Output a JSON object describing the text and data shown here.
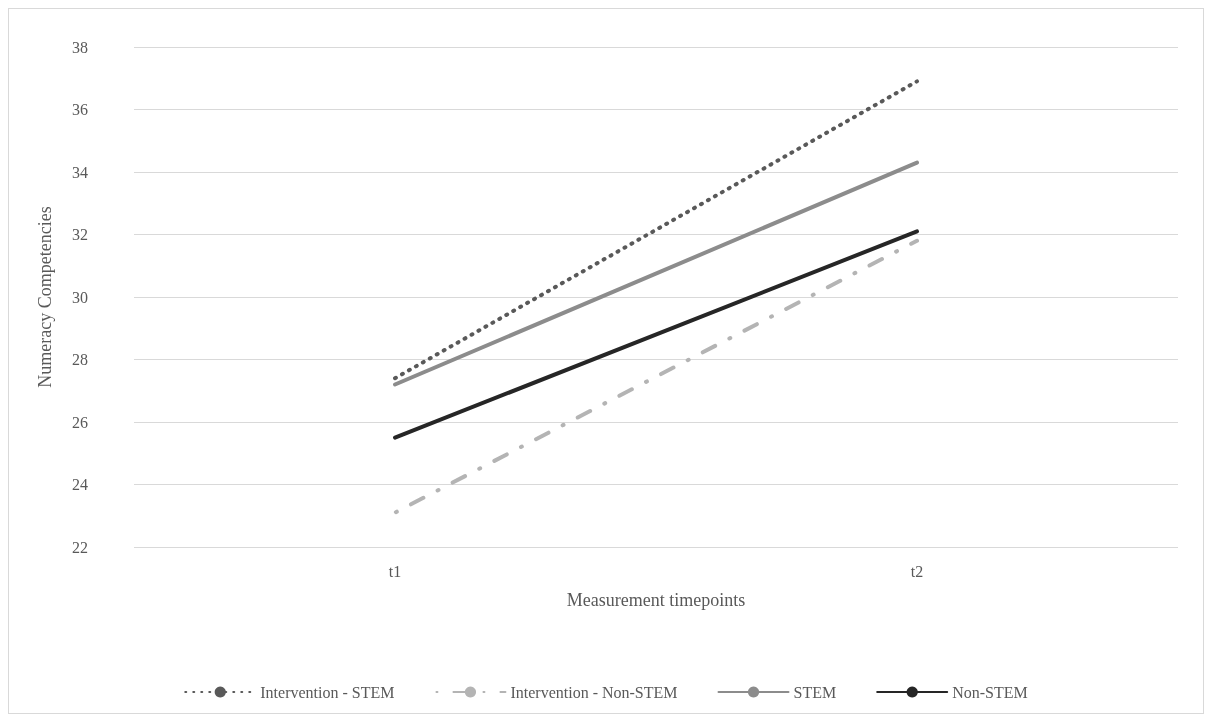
{
  "chart_data": {
    "type": "line",
    "xlabel": "Measurement timepoints",
    "ylabel": "Numeracy Competencies",
    "categories": [
      "t1",
      "t2"
    ],
    "series": [
      {
        "name": "Intervention - STEM",
        "color": "#595959",
        "line_style": "dotted",
        "values": [
          27.4,
          36.9
        ]
      },
      {
        "name": "Intervention - Non-STEM",
        "color": "#b4b4b4",
        "line_style": "dashed",
        "values": [
          23.1,
          31.8
        ]
      },
      {
        "name": "STEM",
        "color": "#8c8c8c",
        "line_style": "solid",
        "values": [
          27.2,
          34.3
        ]
      },
      {
        "name": "Non-STEM",
        "color": "#262626",
        "line_style": "solid",
        "values": [
          25.5,
          32.1
        ]
      }
    ],
    "ylim": [
      22,
      38
    ],
    "yticks": [
      22,
      24,
      26,
      28,
      30,
      32,
      34,
      36,
      38
    ],
    "grid": "y",
    "legend": "bottom",
    "marker": "none"
  }
}
